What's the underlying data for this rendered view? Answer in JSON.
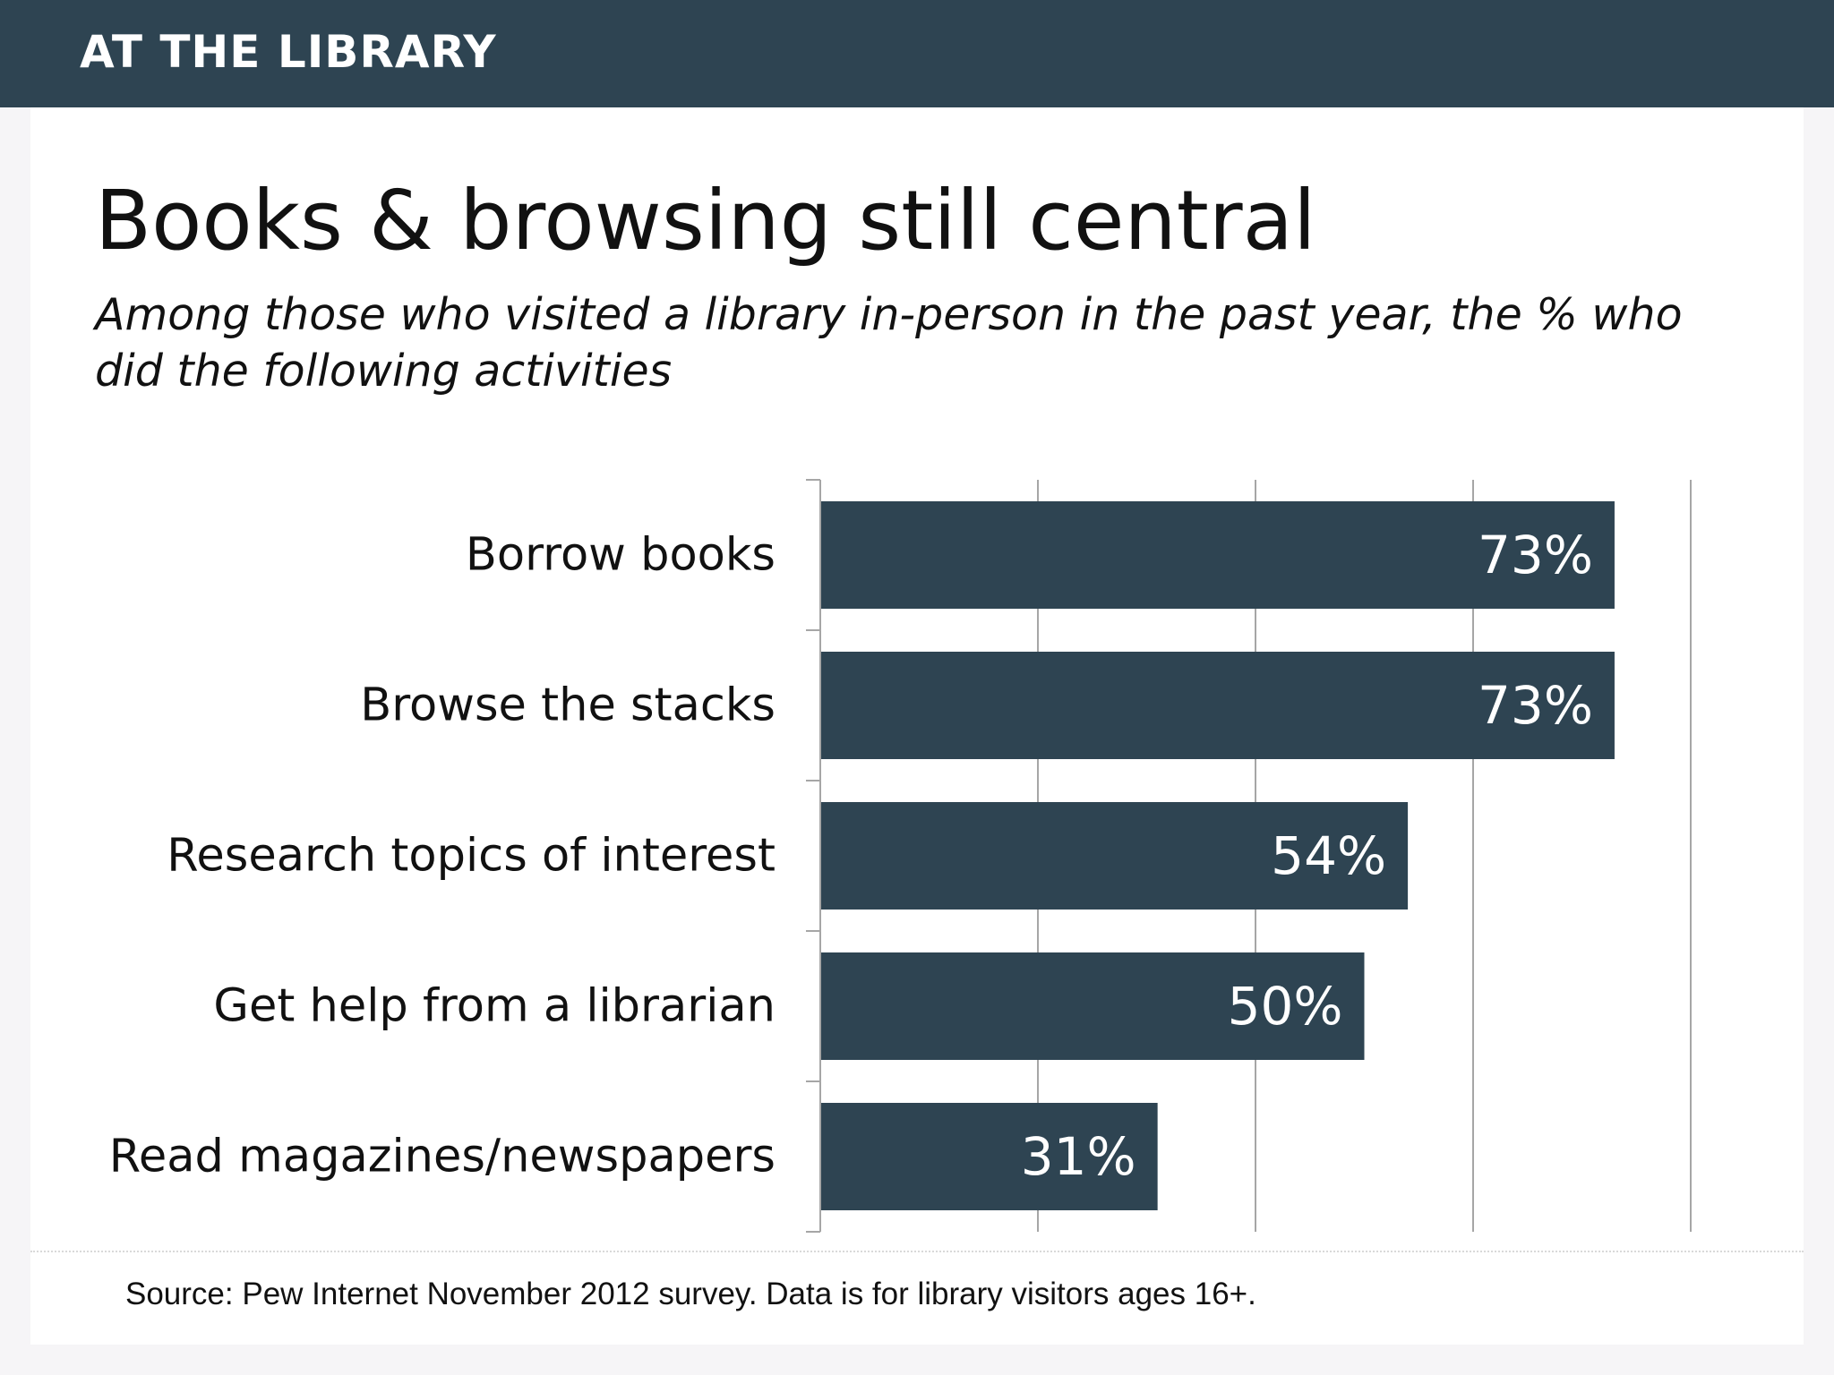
{
  "header": {
    "label": "AT THE LIBRARY"
  },
  "colors": {
    "header_bg": "#2e4452",
    "bar": "#2e4452",
    "value_label": "#ffffff",
    "gridline": "#a6a6a6"
  },
  "chart_data": {
    "type": "bar",
    "orientation": "horizontal",
    "title": "Books & browsing still central",
    "subtitle": "Among those who visited a library in-person in the past year, the % who did the following activities",
    "categories": [
      "Borrow books",
      "Browse the stacks",
      "Research topics of interest",
      "Get help from a librarian",
      "Read magazines/newspapers"
    ],
    "values": [
      73,
      73,
      54,
      50,
      31
    ],
    "value_labels": [
      "73%",
      "73%",
      "54%",
      "50%",
      "31%"
    ],
    "xlim": [
      0,
      80
    ],
    "grid": true,
    "legend": "none"
  },
  "footer": {
    "source": "Source: Pew Internet November 2012 survey. Data is for library visitors ages 16+."
  }
}
